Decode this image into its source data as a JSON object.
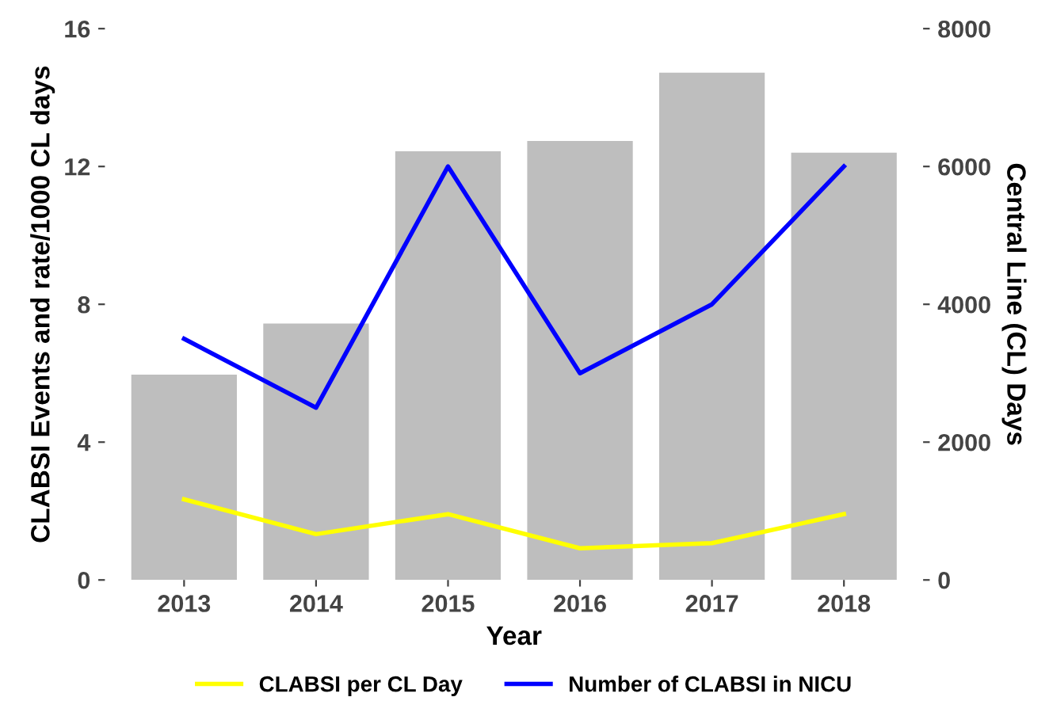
{
  "chart_data": {
    "type": "line",
    "xlabel": "Year",
    "ylabel": "CLABSI Events and rate/1000 CL days",
    "y2label": "Central Line (CL) Days",
    "categories": [
      "2013",
      "2014",
      "2015",
      "2016",
      "2017",
      "2018"
    ],
    "series": [
      {
        "type": "bar",
        "axis": "y2",
        "color": "#bebebe",
        "values": [
          2980,
          3720,
          6220,
          6370,
          7360,
          6200
        ]
      },
      {
        "name": "CLABSI per CL Day",
        "color": "#ffff00",
        "values": [
          2.34,
          1.33,
          1.91,
          0.92,
          1.07,
          1.91
        ]
      },
      {
        "name": "Number of CLABSI in NICU",
        "color": "#0000ff",
        "values": [
          7,
          5,
          12,
          6,
          8,
          12
        ]
      }
    ],
    "ylim": [
      0,
      16
    ],
    "yticks": [
      0,
      4,
      8,
      12,
      16
    ],
    "y2lim": [
      0,
      8000
    ],
    "y2ticks": [
      0,
      2000,
      4000,
      6000,
      8000
    ],
    "grid": false,
    "legend": "bottom",
    "marker": "none",
    "line_style": "solid"
  }
}
